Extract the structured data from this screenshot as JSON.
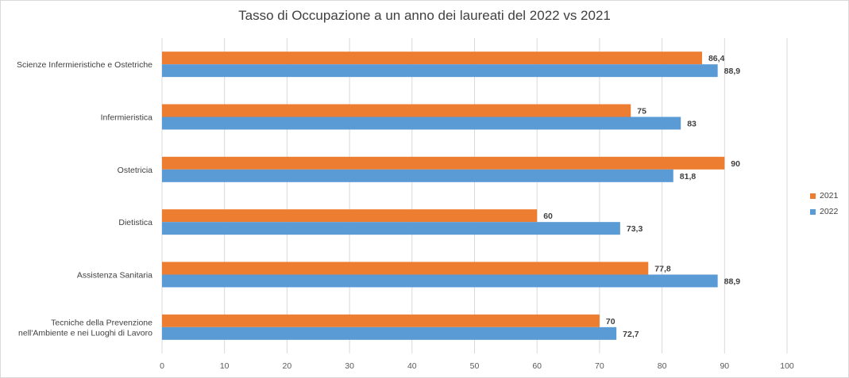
{
  "chart_data": {
    "type": "bar",
    "orientation": "horizontal",
    "title": "Tasso di Occupazione a un anno dei laureati del 2022 vs 2021",
    "categories": [
      [
        "Scienze Infermieristiche e Ostetriche"
      ],
      [
        "Infermieristica"
      ],
      [
        "Ostetricia"
      ],
      [
        "Dietistica"
      ],
      [
        "Assistenza Sanitaria"
      ],
      [
        "Tecniche della Prevenzione",
        "nell'Ambiente e nei Luoghi di Lavoro"
      ]
    ],
    "series": [
      {
        "name": "2021",
        "color": "#ED7D31",
        "values": [
          86.4,
          75,
          90,
          60,
          77.8,
          70
        ],
        "labels": [
          "86,4",
          "75",
          "90",
          "60",
          "77,8",
          "70"
        ]
      },
      {
        "name": "2022",
        "color": "#5B9BD5",
        "values": [
          88.9,
          83,
          81.8,
          73.3,
          88.9,
          72.7
        ],
        "labels": [
          "88,9",
          "83",
          "81,8",
          "73,3",
          "88,9",
          "72,7"
        ]
      }
    ],
    "xlim": [
      0,
      100
    ],
    "xticks": [
      0,
      10,
      20,
      30,
      40,
      50,
      60,
      70,
      80,
      90,
      100
    ],
    "grid": true,
    "legend_position": "right"
  }
}
